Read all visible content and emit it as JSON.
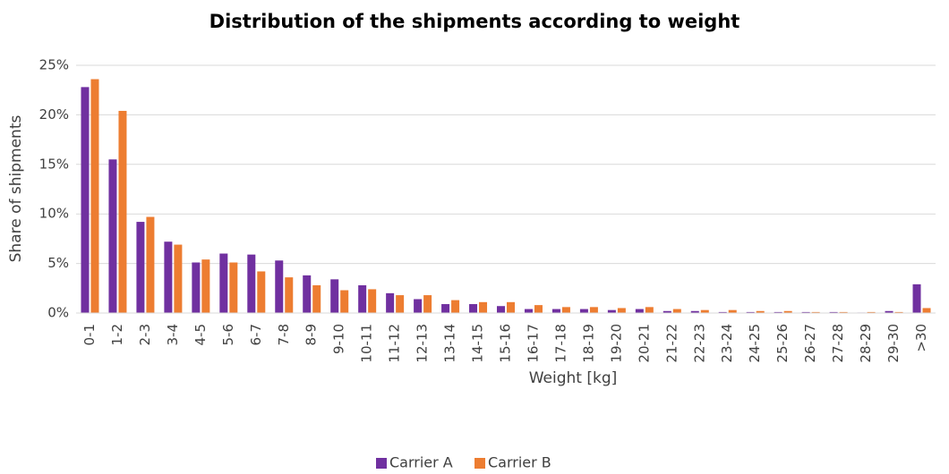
{
  "chart_data": {
    "type": "bar",
    "title": "Distribution of the shipments according to weight",
    "x_label": "Weight [kg]",
    "y_label": "Share of shipments",
    "categories": [
      "0-1",
      "1-2",
      "2-3",
      "3-4",
      "4-5",
      "5-6",
      "6-7",
      "7-8",
      "8-9",
      "9-10",
      "10-11",
      "11-12",
      "12-13",
      "13-14",
      "14-15",
      "15-16",
      "16-17",
      "17-18",
      "18-19",
      "19-20",
      "20-21",
      "21-22",
      "22-23",
      "23-24",
      "24-25",
      "25-26",
      "26-27",
      "27-28",
      "28-29",
      "29-30",
      ">30"
    ],
    "series": [
      {
        "name": "Carrier A",
        "color": "#7030a0",
        "values": [
          22.8,
          15.5,
          9.2,
          7.2,
          5.1,
          6.0,
          5.9,
          5.3,
          3.8,
          3.4,
          2.8,
          2.0,
          1.4,
          0.9,
          0.9,
          0.7,
          0.4,
          0.4,
          0.4,
          0.3,
          0.4,
          0.2,
          0.2,
          0.1,
          0.1,
          0.1,
          0.1,
          0.1,
          0.05,
          0.2,
          2.9
        ]
      },
      {
        "name": "Carrier B",
        "color": "#ed7d31",
        "values": [
          23.6,
          20.4,
          9.7,
          6.9,
          5.4,
          5.1,
          4.2,
          3.6,
          2.8,
          2.3,
          2.4,
          1.8,
          1.8,
          1.3,
          1.1,
          1.1,
          0.8,
          0.6,
          0.6,
          0.5,
          0.6,
          0.4,
          0.3,
          0.3,
          0.2,
          0.2,
          0.1,
          0.1,
          0.1,
          0.1,
          0.5
        ]
      }
    ],
    "ylim": [
      0,
      25
    ],
    "yticks": [
      {
        "value": 0,
        "label": "0%"
      },
      {
        "value": 5,
        "label": "5%"
      },
      {
        "value": 10,
        "label": "10%"
      },
      {
        "value": 15,
        "label": "15%"
      },
      {
        "value": 20,
        "label": "20%"
      },
      {
        "value": 25,
        "label": "25%"
      }
    ],
    "grid": true,
    "legend": "bottom"
  }
}
